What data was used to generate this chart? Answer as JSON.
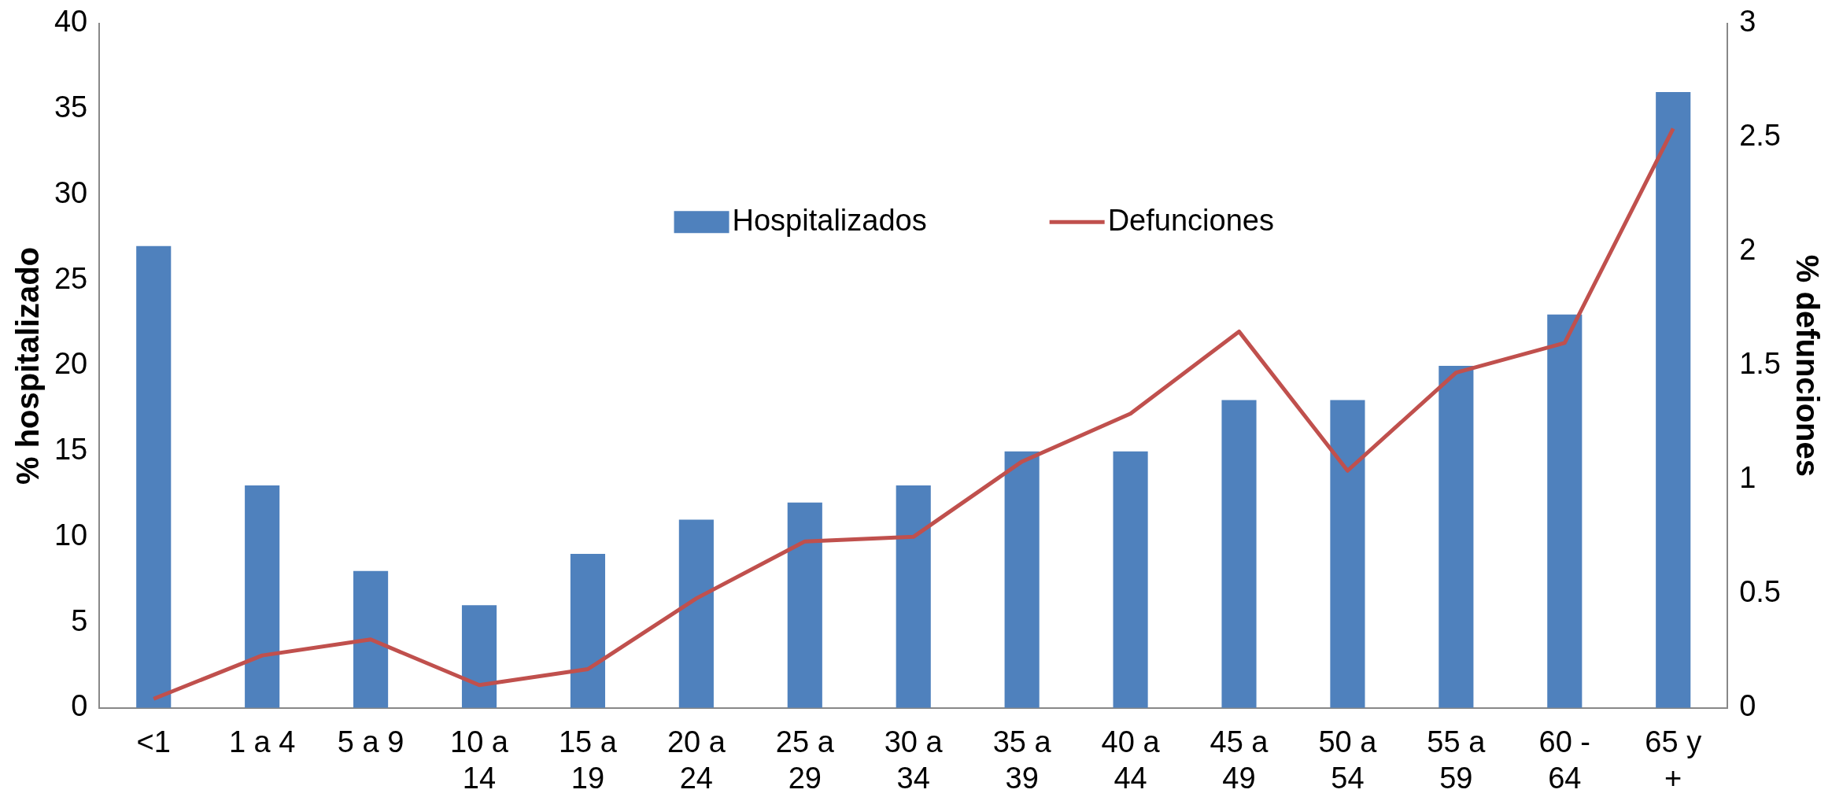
{
  "chart_data": {
    "type": "bar",
    "xlabel": null,
    "ylabel": "% hospitalizado",
    "y2label": "% defunciones",
    "categories": [
      "<1",
      "1 a 4",
      "5 a 9",
      "10 a 14",
      "15 a 19",
      "20 a 24",
      "25 a 29",
      "30 a 34",
      "35 a 39",
      "40 a 44",
      "45 a 49",
      "50 a 54",
      "55 a 59",
      "60 - 64",
      "65 y +"
    ],
    "series": [
      {
        "name": "Hospitalizados",
        "color": "#4f81bd",
        "values": [
          27,
          13,
          8,
          6,
          9,
          11,
          12,
          13,
          15,
          15,
          18,
          18,
          20,
          23,
          36
        ]
      },
      {
        "name": "Defunciones",
        "type": "line",
        "axis": "y2",
        "color": "#c0504d",
        "values": [
          0.04,
          0.23,
          0.3,
          0.1,
          0.17,
          0.48,
          0.73,
          0.75,
          1.08,
          1.29,
          1.65,
          1.04,
          1.47,
          1.6,
          2.54
        ]
      }
    ],
    "ylim": [
      0,
      40
    ],
    "yticks": [
      0,
      5,
      10,
      15,
      20,
      25,
      30,
      35,
      40
    ],
    "y2lim": [
      0,
      3
    ],
    "y2ticks": [
      0,
      0.5,
      1,
      1.5,
      2,
      2.5,
      3
    ],
    "legend": "top",
    "marker": "none",
    "line_style": "solid"
  }
}
